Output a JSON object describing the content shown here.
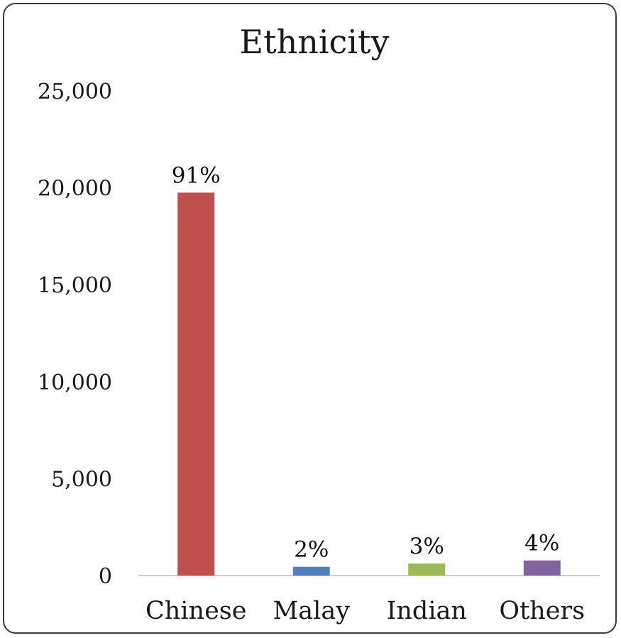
{
  "chart_data": {
    "type": "bar",
    "title": "Ethnicity",
    "categories": [
      "Chinese",
      "Malay",
      "Indian",
      "Others"
    ],
    "values": [
      19750,
      450,
      620,
      780
    ],
    "data_labels": [
      "91%",
      "2%",
      "3%",
      "4%"
    ],
    "colors": [
      "#c0504d",
      "#4f81bd",
      "#9bbb59",
      "#8064a2"
    ],
    "ylim": [
      0,
      25000
    ],
    "yticks": [
      0,
      5000,
      10000,
      15000,
      20000,
      25000
    ],
    "ytick_labels": [
      "0",
      "5,000",
      "10,000",
      "15,000",
      "20,000",
      "25,000"
    ],
    "grid": false,
    "legend": "none",
    "xlabel": "",
    "ylabel": ""
  }
}
